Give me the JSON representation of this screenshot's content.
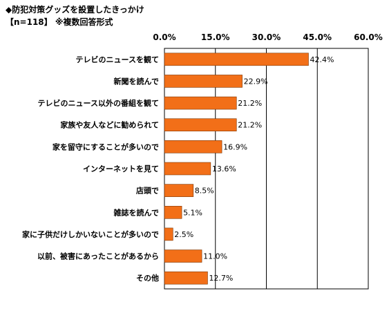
{
  "chart_data": {
    "type": "bar",
    "orientation": "horizontal",
    "title": "◆防犯対策グッズを設置したきっかけ",
    "subtitle": "【n=118】 ※複数回答形式",
    "categories": [
      "テレビのニュースを観て",
      "新聞を読んで",
      "テレビのニュース以外の番組を観て",
      "家族や友人などに勧められて",
      "家を留守にすることが多いので",
      "インターネットを見て",
      "店頭で",
      "雑誌を読んで",
      "家に子供だけしかいないことが多いので",
      "以前、被害にあったことがあるから",
      "その他"
    ],
    "values": [
      42.4,
      22.9,
      21.2,
      21.2,
      16.9,
      13.6,
      8.5,
      5.1,
      2.5,
      11.0,
      12.7
    ],
    "value_labels": [
      "42.4%",
      "22.9%",
      "21.2%",
      "21.2%",
      "16.9%",
      "13.6%",
      "8.5%",
      "5.1%",
      "2.5%",
      "11.0%",
      "12.7%"
    ],
    "xlim": [
      0,
      60
    ],
    "ticks": [
      0,
      15,
      30,
      45,
      60
    ],
    "tick_labels": [
      "0.0%",
      "15.0%",
      "30.0%",
      "45.0%",
      "60.0%"
    ],
    "grid": true,
    "bar_color": "#f26f18",
    "bar_edge_color": "#7a3300"
  }
}
